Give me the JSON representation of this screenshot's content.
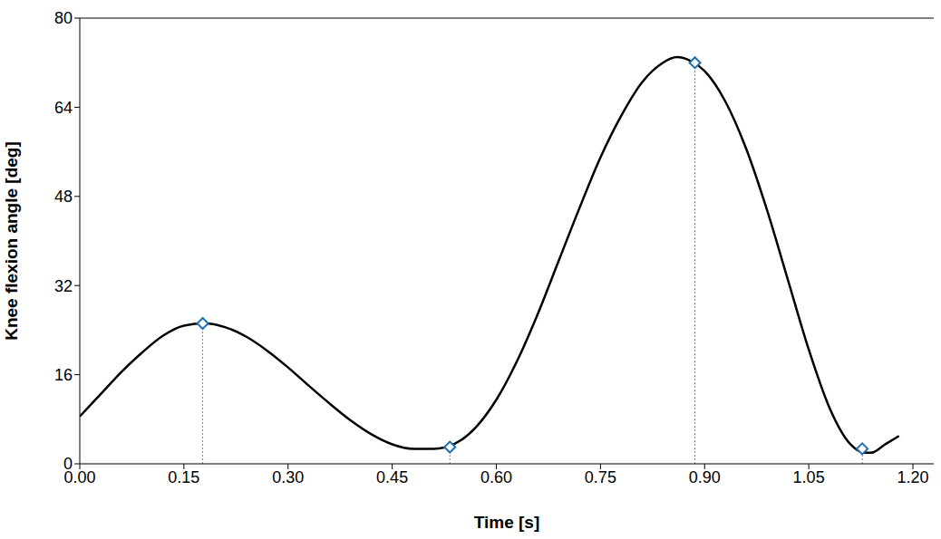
{
  "chart_data": {
    "type": "line",
    "x_label": "Time [s]",
    "y_label": "Knee flexion angle [deg]",
    "x": [
      0,
      0.03,
      0.06,
      0.09,
      0.12,
      0.15,
      0.18,
      0.21,
      0.24,
      0.27,
      0.3,
      0.33,
      0.36,
      0.39,
      0.42,
      0.45,
      0.48,
      0.51,
      0.54,
      0.57,
      0.6,
      0.63,
      0.66,
      0.69,
      0.72,
      0.75,
      0.78,
      0.81,
      0.84,
      0.86,
      0.88,
      0.9,
      0.93,
      0.96,
      0.99,
      1.02,
      1.05,
      1.08,
      1.11,
      1.13,
      1.14,
      1.16,
      1.18
    ],
    "values": [
      8.5,
      12.5,
      16.5,
      20,
      23,
      24.8,
      25.2,
      24.5,
      22.8,
      20.3,
      17.3,
      14,
      10.8,
      7.8,
      5.3,
      3.5,
      2.7,
      2.7,
      3.6,
      6.5,
      11.5,
      18.5,
      27,
      36.5,
      46,
      55,
      62.5,
      68.5,
      72,
      73,
      72.3,
      70.5,
      65,
      56.5,
      45.5,
      33,
      20.5,
      10,
      3.5,
      2,
      2,
      3.5,
      5
    ],
    "color": "#000000",
    "markers": {
      "x": [
        0.177,
        0.533,
        0.886,
        1.127
      ],
      "values": [
        25.2,
        3,
        72,
        2.7
      ],
      "color": "#1f6fb4",
      "marker": "diamond"
    },
    "xlim": [
      0,
      1.23
    ],
    "xticks": [
      {
        "value": 0,
        "label": "0.00"
      },
      {
        "value": 0.15,
        "label": "0.15"
      },
      {
        "value": 0.3,
        "label": "0.30"
      },
      {
        "value": 0.45,
        "label": "0.45"
      },
      {
        "value": 0.6,
        "label": "0.60"
      },
      {
        "value": 0.75,
        "label": "0.75"
      },
      {
        "value": 0.9,
        "label": "0.90"
      },
      {
        "value": 1.05,
        "label": "1.05"
      },
      {
        "value": 1.2,
        "label": "1.20"
      }
    ],
    "ylim": [
      0,
      80
    ],
    "yticks": [
      0,
      16,
      32,
      48,
      64,
      80
    ],
    "grid": false
  }
}
